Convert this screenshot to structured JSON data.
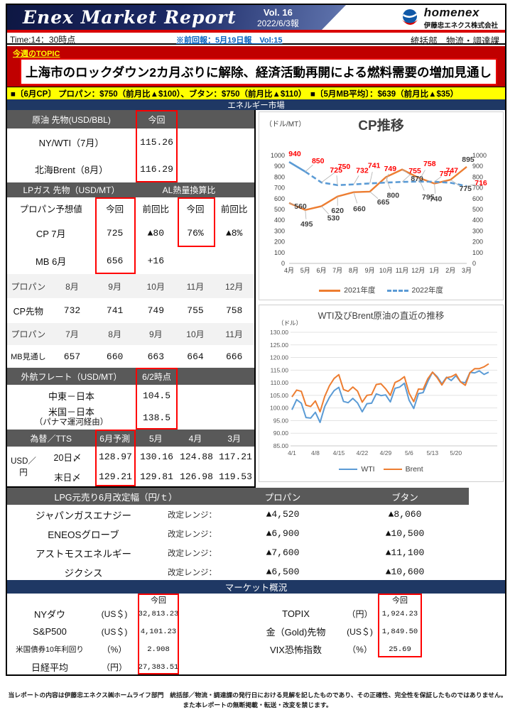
{
  "header": {
    "title": "Enex Market Report",
    "vol": "Vol. 16",
    "edition": "2022/6/3報",
    "brand": "homenex",
    "company": "伊藤忠エネクス株式会社",
    "time": "Time:14：30時点",
    "prev_report": "※前回報：5月19日報　Vol:15",
    "department": "統括部　物流・調達課"
  },
  "topic": {
    "label": "今週のTOPIC",
    "headline": "上海市のロックダウン2カ月ぶりに解除、経済活動再開による燃料需要の増加見通し"
  },
  "ticker": "■〔6月CP〕 プロパン：$750（前月比▲$100）、ブタン：$750（前月比▲$110）　■〔5月MB平均〕：$639（前月比▲$35）",
  "energy": {
    "section_title": "エネルギー市場",
    "crude": {
      "header": "原油 先物(USD/BBL)",
      "col": "今回",
      "rows": [
        {
          "label": "NY/WTI（7月）",
          "value": "115.26"
        },
        {
          "label": "北海Brent（8月）",
          "value": "116.29"
        }
      ]
    },
    "lpg": {
      "header_left": "LPガス 先物（USD/MT）",
      "header_right": "AL熱量換算比",
      "sub": [
        "プロパン予想値",
        "今回",
        "前回比",
        "今回",
        "前回比"
      ],
      "rows": [
        {
          "label": "CP 7月",
          "c1": "725",
          "c2": "▲80",
          "c3": "76%",
          "c4": "▲8%"
        },
        {
          "label": "MB 6月",
          "c1": "656",
          "c2": "+16",
          "c3": "",
          "c4": ""
        }
      ]
    },
    "cp_futures": {
      "head": [
        "プロパン",
        "8月",
        "9月",
        "10月",
        "11月",
        "12月"
      ],
      "vals": [
        "CP先物",
        "732",
        "741",
        "749",
        "755",
        "758"
      ]
    },
    "mb_outlook": {
      "head": [
        "プロパン",
        "7月",
        "8月",
        "9月",
        "10月",
        "11月"
      ],
      "vals": [
        "MB見通し",
        "657",
        "660",
        "663",
        "664",
        "666"
      ]
    },
    "freight": {
      "header": "外航フレート（USD/MT）",
      "col": "6/2時点",
      "rows": [
        {
          "label": "中東－日本",
          "label2": "",
          "value": "104.5"
        },
        {
          "label": "米国－日本",
          "label2": "（パナマ運河経由）",
          "value": "138.5"
        }
      ]
    },
    "fx": {
      "head": [
        "為替／TTS",
        "6月予測",
        "5月",
        "4月",
        "3月"
      ],
      "row_label": "USD／円",
      "rows": [
        {
          "label": "20日〆",
          "v": [
            "128.97",
            "130.16",
            "124.88",
            "117.21"
          ]
        },
        {
          "label": "末日〆",
          "v": [
            "129.21",
            "129.81",
            "126.98",
            "119.53"
          ]
        }
      ]
    }
  },
  "lpg_revision": {
    "header": "LPG元売り6月改定幅（円/ｔ）",
    "col_propane": "プロパン",
    "col_butane": "ブタン",
    "range_label": "改定レンジ：",
    "rows": [
      {
        "company": "ジャパンガスエナジー",
        "propane": "▲4,520",
        "butane": "▲8,060"
      },
      {
        "company": "ENEOSグローブ",
        "propane": "▲6,900",
        "butane": "▲10,500"
      },
      {
        "company": "アストモスエネルギー",
        "propane": "▲7,600",
        "butane": "▲11,100"
      },
      {
        "company": "ジクシス",
        "propane": "▲6,500",
        "butane": "▲10,600"
      }
    ]
  },
  "market": {
    "section_title": "マーケット概況",
    "col": "今回",
    "left": [
      {
        "label": "NYダウ",
        "unit": "(US＄)",
        "value": "32,813.23"
      },
      {
        "label": "S&P500",
        "unit": "(US＄)",
        "value": "4,101.23"
      },
      {
        "label": "米国債券10年利回り",
        "unit": "（%）",
        "value": "2.908"
      },
      {
        "label": "日経平均",
        "unit": "（円）",
        "value": "27,383.51"
      }
    ],
    "right": [
      {
        "label": "TOPIX",
        "unit": "（円）",
        "value": "1,924.23"
      },
      {
        "label": "金（Gold)先物",
        "unit": "(US＄)",
        "value": "1,849.50"
      },
      {
        "label": "VIX恐怖指数",
        "unit": "（%）",
        "value": "25.69"
      }
    ]
  },
  "footer": {
    "line1": "当レポートの内容は伊藤忠エネクス㈱ホームライフ部門　統括部／物流・調達課の発行日における見解を記したものであり、その正確性、完全性を保証したものではありません。",
    "line2": "また本レポートの無断掲載・転送・改変を禁じます。"
  },
  "chart_data": [
    {
      "type": "line",
      "title": "CP推移",
      "unit": "（ドル/MT）",
      "categories": [
        "4月",
        "5月",
        "6月",
        "7月",
        "8月",
        "9月",
        "10月",
        "11月",
        "12月",
        "1月",
        "2月",
        "3月"
      ],
      "series": [
        {
          "name": "2021年度",
          "color": "#ED7D31",
          "style": "solid",
          "values": [
            560,
            495,
            530,
            620,
            660,
            665,
            800,
            870,
            795,
            740,
            775,
            895
          ]
        },
        {
          "name": "2022年度",
          "color": "#5B9BD5",
          "style": "dashed",
          "values": [
            940,
            850,
            750,
            725,
            732,
            741,
            749,
            755,
            758,
            757,
            747,
            716
          ]
        }
      ],
      "ylim": [
        0,
        1000
      ],
      "ytick": 100,
      "legend_position": "bottom",
      "label_colors": {
        "2021年度": "#3F3F3F",
        "2022年度": "#FF0000"
      }
    },
    {
      "type": "line",
      "title": "WTI及びBrent原油の直近の推移",
      "unit": "（ドル）",
      "x_ticks": [
        "4/1",
        "4/8",
        "4/15",
        "4/22",
        "4/29",
        "5/6",
        "5/13",
        "5/20"
      ],
      "series": [
        {
          "name": "WTI",
          "color": "#5B9BD5",
          "values": [
            99.3,
            103.3,
            101.9,
            96.2,
            96.0,
            98.3,
            94.3,
            100.6,
            104.2,
            106.9,
            108.2,
            102.6,
            102.1,
            103.8,
            102.0,
            98.5,
            101.7,
            101.9,
            105.6,
            104.9,
            105.2,
            102.4,
            107.8,
            108.3,
            109.8,
            103.1,
            99.8,
            105.7,
            106.1,
            110.5,
            114.2,
            112.4,
            109.6,
            112.2,
            110.9,
            112.8,
            110.3,
            110.0,
            114.1,
            113.9,
            114.7,
            113.3,
            114.2
          ]
        },
        {
          "name": "Brent",
          "color": "#ED7D31",
          "values": [
            104.4,
            107.1,
            106.6,
            101.1,
            100.6,
            102.8,
            98.5,
            104.6,
            108.8,
            111.7,
            113.2,
            107.3,
            106.6,
            108.3,
            106.7,
            102.3,
            105.0,
            105.3,
            109.3,
            109.6,
            107.6,
            105.0,
            110.1,
            111.0,
            112.4,
            105.9,
            102.5,
            107.5,
            107.4,
            111.6,
            114.2,
            112.0,
            109.1,
            112.0,
            112.4,
            113.4,
            110.3,
            109.0,
            114.0,
            115.6,
            115.6,
            116.3,
            117.5
          ]
        }
      ],
      "ylim": [
        85,
        130
      ],
      "ytick": 5,
      "grid": true,
      "legend_position": "bottom"
    }
  ],
  "colors": {
    "accent_red": "#C00000",
    "highlight_yellow": "#FFFF00",
    "navy": "#1F3864",
    "table_gray": "#595959",
    "box_red": "#FF0000",
    "orange_series": "#ED7D31",
    "blue_series": "#5B9BD5"
  }
}
